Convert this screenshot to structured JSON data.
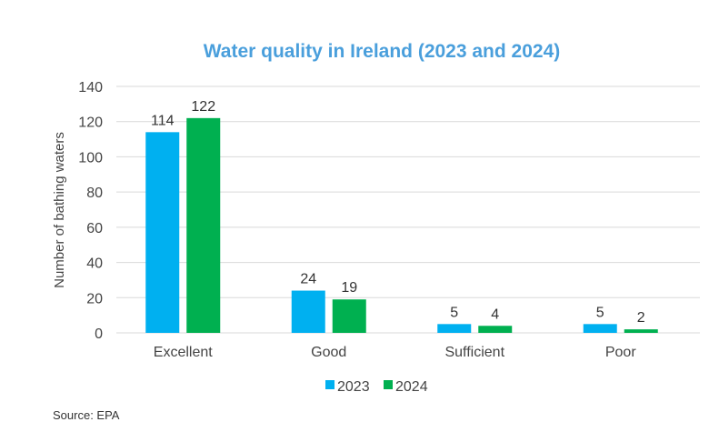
{
  "chart_data": {
    "type": "bar",
    "title": "Water quality in Ireland (2023 and 2024)",
    "xlabel": "",
    "ylabel": "Number of bathing waters",
    "ylim": [
      0,
      140
    ],
    "yticks": [
      0,
      20,
      40,
      60,
      80,
      100,
      120,
      140
    ],
    "grid": true,
    "legend_position": "bottom",
    "categories": [
      "Excellent",
      "Good",
      "Sufficient",
      "Poor"
    ],
    "series": [
      {
        "name": "2023",
        "color": "#00b0f0",
        "values": [
          114,
          24,
          5,
          5
        ]
      },
      {
        "name": "2024",
        "color": "#00b050",
        "values": [
          122,
          19,
          4,
          2
        ]
      }
    ],
    "source": "Source: EPA",
    "title_color": "#4a9fdc"
  }
}
